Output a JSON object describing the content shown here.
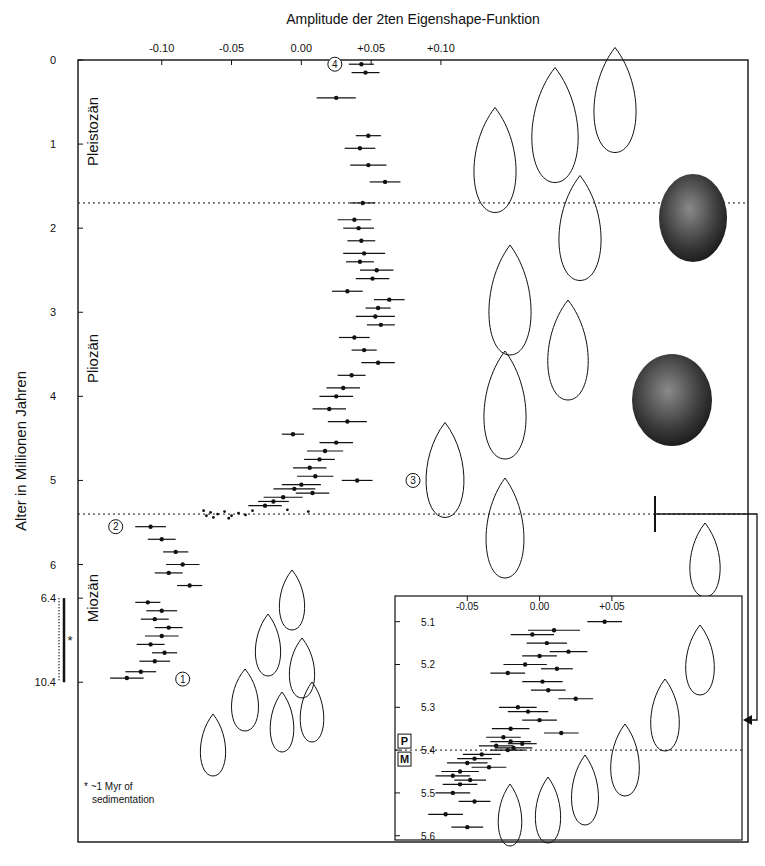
{
  "chart_data": [
    {
      "type": "scatter",
      "x_label": "Amplitude der 2ten Eigenshape-Funktion",
      "y_label": "Alter in Millionen Jahren",
      "xlim": [
        -0.16,
        0.32
      ],
      "xticks": [
        {
          "value": -0.1,
          "label": "-0.10"
        },
        {
          "value": -0.05,
          "label": "-0.05"
        },
        {
          "value": 0,
          "label": "0.00"
        },
        {
          "value": 0.05,
          "label": "+0.05"
        },
        {
          "value": 0.1,
          "label": "+0.10"
        }
      ],
      "ylim": [
        0,
        18
      ],
      "yticks": [
        0,
        1,
        2,
        3,
        4,
        5,
        6,
        6.4,
        10.4
      ],
      "series": [
        {
          "marker": "circle",
          "x": [
            0.043,
            0.046,
            0.025,
            0.048,
            0.042,
            0.048,
            0.06,
            0.044,
            0.038,
            0.041,
            0.043,
            0.045,
            0.042,
            0.054,
            0.051,
            0.033,
            0.063,
            0.055,
            0.053,
            0.057,
            0.038,
            0.045,
            0.055,
            0.036,
            0.03,
            0.025,
            0.02,
            0.033,
            -0.006,
            0.025,
            0.017,
            0.013,
            0.006,
            0.01,
            0.04,
            0.0,
            -0.005,
            0.008,
            -0.013,
            -0.02,
            -0.026,
            -0.108,
            -0.1,
            -0.09,
            -0.085,
            -0.095,
            -0.08,
            -0.11,
            -0.1,
            -0.105,
            -0.095,
            -0.1,
            -0.108,
            -0.098,
            -0.105,
            -0.115,
            -0.125
          ],
          "values": [
            0.05,
            0.15,
            0.45,
            0.9,
            1.05,
            1.25,
            1.45,
            1.7,
            1.9,
            2.0,
            2.15,
            2.3,
            2.4,
            2.5,
            2.6,
            2.75,
            2.85,
            2.95,
            3.05,
            3.15,
            3.3,
            3.45,
            3.6,
            3.75,
            3.9,
            4.0,
            4.15,
            4.3,
            4.45,
            4.55,
            4.65,
            4.75,
            4.85,
            4.95,
            5.0,
            5.05,
            5.1,
            5.15,
            5.2,
            5.25,
            5.3,
            5.55,
            5.7,
            5.85,
            6.0,
            6.1,
            6.25,
            6.6,
            7.0,
            7.4,
            7.8,
            8.2,
            8.6,
            9.0,
            9.4,
            9.9,
            10.2
          ],
          "x_error": [
            0.009,
            0.01,
            0.014,
            0.009,
            0.011,
            0.013,
            0.011,
            0.009,
            0.012,
            0.011,
            0.01,
            0.015,
            0.01,
            0.012,
            0.012,
            0.011,
            0.011,
            0.009,
            0.014,
            0.01,
            0.011,
            0.009,
            0.012,
            0.01,
            0.012,
            0.012,
            0.012,
            0.014,
            0.008,
            0.012,
            0.013,
            0.011,
            0.012,
            0.013,
            0.011,
            0.014,
            0.015,
            0.012,
            0.014,
            0.011,
            0.012,
            0.011,
            0.01,
            0.009,
            0.012,
            0.01,
            0.009,
            0.009,
            0.011,
            0.01,
            0.01,
            0.012,
            0.01,
            0.009,
            0.011,
            0.011,
            0.012
          ]
        },
        {
          "marker": "dot",
          "x": [
            -0.07,
            -0.065,
            -0.06,
            -0.055,
            -0.05,
            -0.045,
            -0.04,
            -0.063,
            -0.052,
            -0.035,
            -0.01,
            0.005,
            -0.068
          ],
          "values": [
            5.36,
            5.38,
            5.4,
            5.37,
            5.42,
            5.39,
            5.41,
            5.44,
            5.45,
            5.36,
            5.35,
            5.37,
            5.42
          ]
        }
      ],
      "epochs": [
        {
          "name": "Pleistozän",
          "from": 0,
          "to": 1.7
        },
        {
          "name": "Pliozän",
          "from": 1.7,
          "to": 5.4
        },
        {
          "name": "Miozän",
          "from": 5.4,
          "to": 10.4
        }
      ],
      "annotations": [
        {
          "text": "1",
          "x": -0.085,
          "y": 10.25
        },
        {
          "text": "2",
          "x": -0.133,
          "y": 5.55
        },
        {
          "text": "3",
          "x": 0.08,
          "y": 5.0
        },
        {
          "text": "4",
          "x": 0.024,
          "y": 0.05
        }
      ],
      "break_label": "*",
      "note": "* ~1 Myr of sedimentation"
    },
    {
      "type": "scatter",
      "xlim": [
        -0.1,
        0.14
      ],
      "xticks": [
        {
          "value": -0.05,
          "label": "-0.05"
        },
        {
          "value": 0,
          "label": "0.00"
        },
        {
          "value": 0.05,
          "label": "+0.05"
        }
      ],
      "ylim": [
        5.04,
        5.61
      ],
      "yticks": [
        5.1,
        5.2,
        5.3,
        5.4,
        5.5,
        5.6
      ],
      "series": [
        {
          "marker": "circle",
          "x": [
            0.045,
            0.01,
            -0.005,
            0.005,
            0.02,
            0.0,
            -0.01,
            0.012,
            -0.022,
            0.002,
            0.006,
            0.025,
            -0.015,
            -0.008,
            0.0,
            -0.02,
            0.015,
            -0.025,
            -0.02,
            -0.012,
            -0.03,
            -0.018,
            -0.022,
            -0.04,
            -0.045,
            -0.05,
            -0.035,
            -0.055,
            -0.06,
            -0.048,
            -0.055,
            -0.06,
            -0.045,
            -0.065,
            -0.05
          ],
          "values": [
            5.1,
            5.12,
            5.13,
            5.15,
            5.17,
            5.18,
            5.2,
            5.21,
            5.22,
            5.24,
            5.26,
            5.28,
            5.3,
            5.31,
            5.33,
            5.35,
            5.36,
            5.37,
            5.38,
            5.385,
            5.39,
            5.395,
            5.4,
            5.41,
            5.42,
            5.43,
            5.44,
            5.45,
            5.46,
            5.47,
            5.48,
            5.5,
            5.52,
            5.55,
            5.58
          ],
          "x_error": [
            0.012,
            0.018,
            0.015,
            0.014,
            0.013,
            0.012,
            0.015,
            0.011,
            0.012,
            0.014,
            0.012,
            0.012,
            0.013,
            0.014,
            0.012,
            0.013,
            0.012,
            0.012,
            0.014,
            0.01,
            0.012,
            0.013,
            0.012,
            0.013,
            0.012,
            0.014,
            0.012,
            0.013,
            0.012,
            0.011,
            0.012,
            0.012,
            0.011,
            0.012,
            0.011
          ]
        }
      ],
      "epochs": [
        {
          "name": "P",
          "to": 5.4
        },
        {
          "name": "M",
          "from": 5.4
        }
      ]
    }
  ]
}
